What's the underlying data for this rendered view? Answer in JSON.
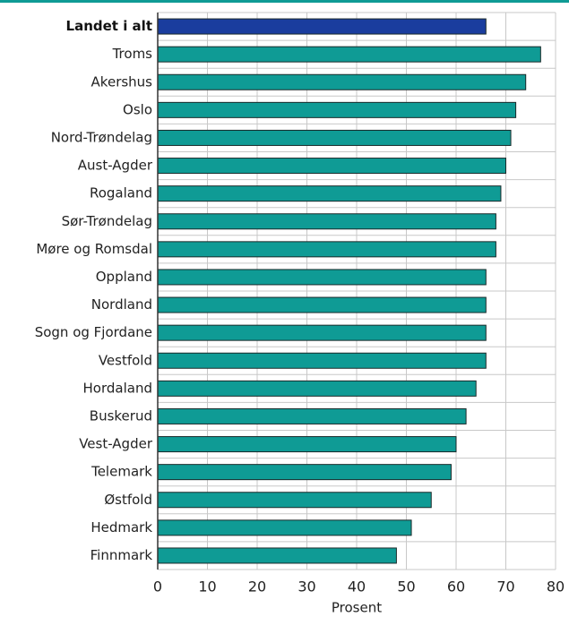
{
  "chart_data": {
    "type": "barh",
    "x_label": "Prosent",
    "categories": [
      "Landet i alt",
      "Troms",
      "Akershus",
      "Oslo",
      "Nord-Trøndelag",
      "Aust-Agder",
      "Rogaland",
      "Sør-Trøndelag",
      "Møre og Romsdal",
      "Oppland",
      "Nordland",
      "Sogn og Fjordane",
      "Vestfold",
      "Hordaland",
      "Buskerud",
      "Vest-Agder",
      "Telemark",
      "Østfold",
      "Hedmark",
      "Finnmark"
    ],
    "values": [
      66,
      77,
      74,
      72,
      71,
      70,
      69,
      68,
      68,
      66,
      66,
      66,
      66,
      64,
      62,
      60,
      59,
      55,
      51,
      48
    ],
    "color": "#0f9b95",
    "highlight": {
      "index": 0,
      "color": "#1a3d9e"
    },
    "xlim": [
      0,
      80
    ],
    "xticks": [
      0,
      10,
      20,
      30,
      40,
      50,
      60,
      70,
      80
    ],
    "grid": true
  }
}
